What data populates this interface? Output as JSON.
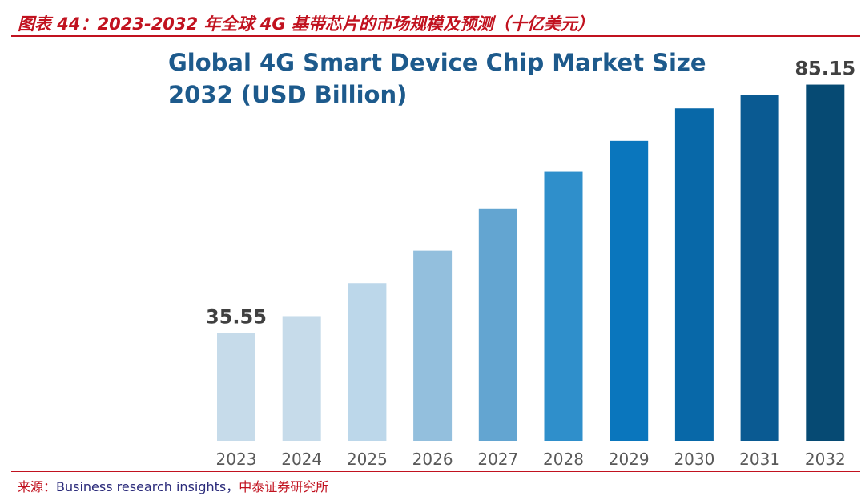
{
  "header": {
    "caption": "图表 44：2023-2032 年全球 4G 基带芯片的市场规模及预测（十亿美元）"
  },
  "footer": {
    "prefix": "来源：",
    "source": "Business research insights，",
    "institute": "中泰证券研究所"
  },
  "colors": {
    "accent": "#c1121f",
    "title": "#1d5a8c",
    "bars": [
      "#c6dbea",
      "#c6dbea",
      "#bcd7ea",
      "#93bfdd",
      "#63a5d1",
      "#2f8fcb",
      "#0a76bd",
      "#0868a8",
      "#0a5a92",
      "#064a73"
    ]
  },
  "chart_data": {
    "type": "bar",
    "title": "Global 4G Smart Device Chip Market Size 2032 (USD Billion)",
    "categories": [
      "2023",
      "2024",
      "2025",
      "2026",
      "2027",
      "2028",
      "2029",
      "2030",
      "2031",
      "2032"
    ],
    "values": [
      35.55,
      38.9,
      45.5,
      52.0,
      60.3,
      67.7,
      73.9,
      80.4,
      83.0,
      85.15
    ],
    "data_labels": [
      {
        "category": "2023",
        "text": "35.55"
      },
      {
        "category": "2032",
        "text": "85.15"
      }
    ],
    "ylim": [
      14,
      87
    ],
    "xlabel": "",
    "ylabel": "",
    "grid": false,
    "legend": false
  }
}
